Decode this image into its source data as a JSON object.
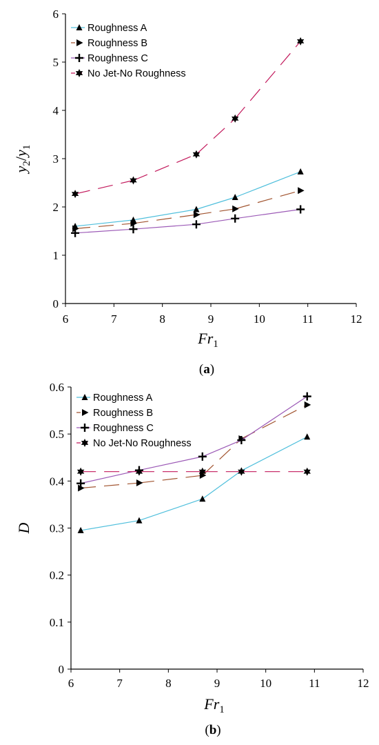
{
  "chart_data": [
    {
      "type": "line",
      "caption": "(a)",
      "xlabel": "Fr1",
      "ylabel": "y2/y1",
      "xlim": [
        6,
        12
      ],
      "ylim": [
        0,
        6
      ],
      "x_ticks": [
        6,
        7,
        8,
        9,
        10,
        11,
        12
      ],
      "y_ticks": [
        0,
        1,
        2,
        3,
        4,
        5,
        6
      ],
      "grid": false,
      "legend_position": "top-left",
      "series": [
        {
          "name": "Roughness A",
          "marker": "triangle",
          "line_color": "#4fbfdc",
          "dash": "none",
          "points": [
            [
              6.2,
              1.6
            ],
            [
              7.4,
              1.73
            ],
            [
              8.7,
              1.95
            ],
            [
              9.5,
              2.2
            ],
            [
              10.85,
              2.73
            ]
          ]
        },
        {
          "name": "Roughness B",
          "marker": "arrow",
          "line_color": "#a0522d",
          "dash": "dashed",
          "points": [
            [
              6.2,
              1.55
            ],
            [
              7.4,
              1.66
            ],
            [
              8.7,
              1.84
            ],
            [
              9.5,
              1.96
            ],
            [
              10.85,
              2.34
            ]
          ]
        },
        {
          "name": "Roughness C",
          "marker": "plus",
          "line_color": "#9b59b6",
          "dash": "none",
          "points": [
            [
              6.2,
              1.46
            ],
            [
              7.4,
              1.54
            ],
            [
              8.7,
              1.64
            ],
            [
              9.5,
              1.76
            ],
            [
              10.85,
              1.95
            ]
          ]
        },
        {
          "name": "No Jet-No Roughness",
          "marker": "star",
          "line_color": "#c2185b",
          "dash": "dashed",
          "points": [
            [
              6.2,
              2.27
            ],
            [
              7.4,
              2.55
            ],
            [
              8.7,
              3.09
            ],
            [
              9.5,
              3.83
            ],
            [
              10.85,
              5.43
            ]
          ]
        }
      ]
    },
    {
      "type": "line",
      "caption": "(b)",
      "xlabel": "Fr1",
      "ylabel": "D",
      "xlim": [
        6,
        12
      ],
      "ylim": [
        0,
        0.6
      ],
      "x_ticks": [
        6,
        7,
        8,
        9,
        10,
        11,
        12
      ],
      "y_ticks": [
        0,
        0.1,
        0.2,
        0.3,
        0.4,
        0.5,
        0.6
      ],
      "grid": false,
      "legend_position": "top-left",
      "series": [
        {
          "name": "Roughness A",
          "marker": "triangle",
          "line_color": "#4fbfdc",
          "dash": "none",
          "points": [
            [
              6.2,
              0.295
            ],
            [
              7.4,
              0.316
            ],
            [
              8.7,
              0.362
            ],
            [
              9.5,
              0.422
            ],
            [
              10.85,
              0.494
            ]
          ]
        },
        {
          "name": "Roughness B",
          "marker": "arrow",
          "line_color": "#a0522d",
          "dash": "dashed",
          "points": [
            [
              6.2,
              0.385
            ],
            [
              7.4,
              0.396
            ],
            [
              8.7,
              0.412
            ],
            [
              9.5,
              0.49
            ],
            [
              10.85,
              0.562
            ]
          ]
        },
        {
          "name": "Roughness C",
          "marker": "plus",
          "line_color": "#9b59b6",
          "dash": "none",
          "points": [
            [
              6.2,
              0.395
            ],
            [
              7.4,
              0.423
            ],
            [
              8.7,
              0.452
            ],
            [
              9.5,
              0.487
            ],
            [
              10.85,
              0.58
            ]
          ]
        },
        {
          "name": "No Jet-No Roughness",
          "marker": "star",
          "line_color": "#c2185b",
          "dash": "dashed",
          "points": [
            [
              6.2,
              0.42
            ],
            [
              7.4,
              0.42
            ],
            [
              8.7,
              0.42
            ],
            [
              9.5,
              0.42
            ],
            [
              10.85,
              0.42
            ]
          ]
        }
      ]
    }
  ]
}
